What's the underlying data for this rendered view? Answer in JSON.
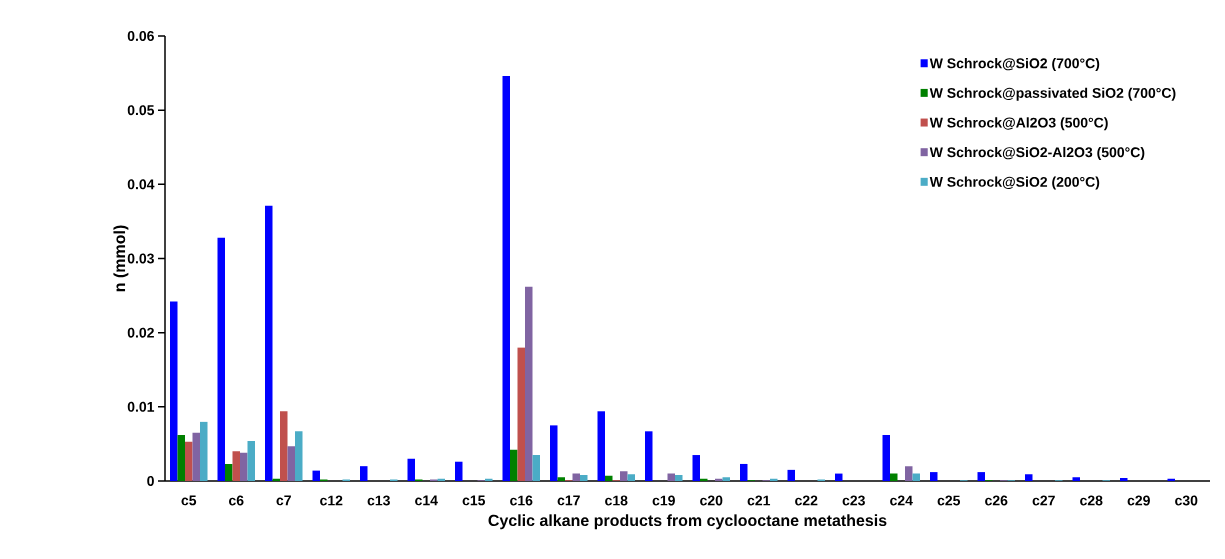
{
  "chart_data": {
    "type": "bar",
    "xlabel": "Cyclic alkane products from cyclooctane metathesis",
    "ylabel": "n (mmol)",
    "categories": [
      "c5",
      "c6",
      "c7",
      "c12",
      "c13",
      "c14",
      "c15",
      "c16",
      "c17",
      "c18",
      "c19",
      "c20",
      "c21",
      "c22",
      "c23",
      "c24",
      "c25",
      "c26",
      "c27",
      "c28",
      "c29",
      "c30"
    ],
    "ylim": [
      0,
      0.06
    ],
    "yticks": [
      0,
      0.01,
      0.02,
      0.03,
      0.04,
      0.05,
      0.06
    ],
    "grid": false,
    "legend": "top right",
    "series": [
      {
        "name": "W Schrock@SiO2 (700°C)",
        "color": "#0000ff",
        "values": [
          0.0242,
          0.0328,
          0.0371,
          0.0014,
          0.002,
          0.003,
          0.0026,
          0.0546,
          0.0075,
          0.0094,
          0.0067,
          0.0035,
          0.0023,
          0.0015,
          0.001,
          0.0062,
          0.0012,
          0.0012,
          0.0009,
          0.0005,
          0.0004,
          0.0003
        ]
      },
      {
        "name": "W Schrock@passivated SiO2 (700°C)",
        "color": "#008000",
        "values": [
          0.0062,
          0.0023,
          0.0003,
          0.0002,
          0,
          0.0002,
          0,
          0.0042,
          0.0005,
          0.0007,
          0,
          0.0003,
          0.0001,
          0,
          0,
          0.001,
          0,
          0.0001,
          0,
          0,
          0,
          0
        ]
      },
      {
        "name": "W Schrock@Al2O3 (500°C)",
        "color": "#c0504d",
        "values": [
          0.0053,
          0.004,
          0.0094,
          0,
          0,
          0,
          0,
          0.018,
          0.0001,
          0.0001,
          0,
          0,
          0,
          0,
          0,
          0,
          0,
          0,
          0,
          0,
          0,
          0
        ]
      },
      {
        "name": "W Schrock@SiO2-Al2O3 (500°C)",
        "color": "#8064a2",
        "values": [
          0.0065,
          0.0038,
          0.0047,
          0,
          0,
          0.0002,
          0.0001,
          0.0262,
          0.001,
          0.0013,
          0.001,
          0.0003,
          0.0001,
          0,
          0,
          0.002,
          0,
          0.0001,
          0,
          0,
          0,
          0
        ]
      },
      {
        "name": "W Schrock@SiO2 (200°C)",
        "color": "#4bacc6",
        "values": [
          0.008,
          0.0054,
          0.0067,
          0.0002,
          0.0002,
          0.0003,
          0.0003,
          0.0035,
          0.0008,
          0.0009,
          0.0008,
          0.0005,
          0.0003,
          0.0002,
          0,
          0.001,
          0.0001,
          0.0001,
          0.0001,
          0.0001,
          0,
          0
        ]
      }
    ]
  }
}
